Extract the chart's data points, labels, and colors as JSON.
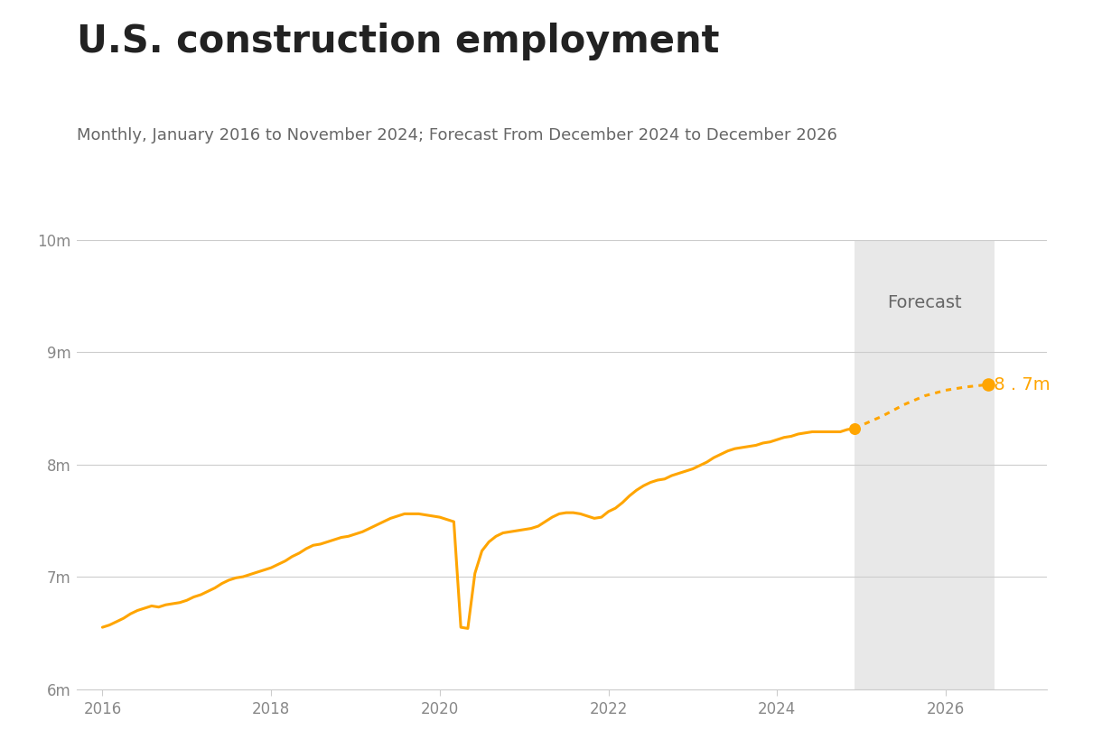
{
  "title": "U.S. construction employment",
  "subtitle": "Monthly, January 2016 to November 2024; Forecast From December 2024 to December 2026",
  "title_fontsize": 30,
  "subtitle_fontsize": 13,
  "line_color": "#FFA500",
  "forecast_dot_color": "#FFA500",
  "forecast_bg_color": "#E8E8E8",
  "forecast_label": "Forecast",
  "end_label": "8 . 7m",
  "ylim": [
    6000000,
    10000000
  ],
  "yticks": [
    6000000,
    7000000,
    8000000,
    9000000,
    10000000
  ],
  "ytick_labels": [
    "6m",
    "7m",
    "8m",
    "9m",
    "10m"
  ],
  "xticks": [
    2016,
    2018,
    2020,
    2022,
    2024,
    2026
  ],
  "xlim_start": 2015.7,
  "xlim_end": 2027.2,
  "forecast_start_year": 2024.92,
  "forecast_end_year": 2026.58,
  "historical_data": [
    [
      2016.0,
      6550000
    ],
    [
      2016.083,
      6570000
    ],
    [
      2016.167,
      6600000
    ],
    [
      2016.25,
      6630000
    ],
    [
      2016.333,
      6670000
    ],
    [
      2016.417,
      6700000
    ],
    [
      2016.5,
      6720000
    ],
    [
      2016.583,
      6740000
    ],
    [
      2016.667,
      6730000
    ],
    [
      2016.75,
      6750000
    ],
    [
      2016.833,
      6760000
    ],
    [
      2016.917,
      6770000
    ],
    [
      2017.0,
      6790000
    ],
    [
      2017.083,
      6820000
    ],
    [
      2017.167,
      6840000
    ],
    [
      2017.25,
      6870000
    ],
    [
      2017.333,
      6900000
    ],
    [
      2017.417,
      6940000
    ],
    [
      2017.5,
      6970000
    ],
    [
      2017.583,
      6990000
    ],
    [
      2017.667,
      7000000
    ],
    [
      2017.75,
      7020000
    ],
    [
      2017.833,
      7040000
    ],
    [
      2017.917,
      7060000
    ],
    [
      2018.0,
      7080000
    ],
    [
      2018.083,
      7110000
    ],
    [
      2018.167,
      7140000
    ],
    [
      2018.25,
      7180000
    ],
    [
      2018.333,
      7210000
    ],
    [
      2018.417,
      7250000
    ],
    [
      2018.5,
      7280000
    ],
    [
      2018.583,
      7290000
    ],
    [
      2018.667,
      7310000
    ],
    [
      2018.75,
      7330000
    ],
    [
      2018.833,
      7350000
    ],
    [
      2018.917,
      7360000
    ],
    [
      2019.0,
      7380000
    ],
    [
      2019.083,
      7400000
    ],
    [
      2019.167,
      7430000
    ],
    [
      2019.25,
      7460000
    ],
    [
      2019.333,
      7490000
    ],
    [
      2019.417,
      7520000
    ],
    [
      2019.5,
      7540000
    ],
    [
      2019.583,
      7560000
    ],
    [
      2019.667,
      7560000
    ],
    [
      2019.75,
      7560000
    ],
    [
      2019.833,
      7550000
    ],
    [
      2019.917,
      7540000
    ],
    [
      2020.0,
      7530000
    ],
    [
      2020.083,
      7510000
    ],
    [
      2020.167,
      7490000
    ],
    [
      2020.25,
      6550000
    ],
    [
      2020.333,
      6540000
    ],
    [
      2020.417,
      7030000
    ],
    [
      2020.5,
      7230000
    ],
    [
      2020.583,
      7310000
    ],
    [
      2020.667,
      7360000
    ],
    [
      2020.75,
      7390000
    ],
    [
      2020.833,
      7400000
    ],
    [
      2020.917,
      7410000
    ],
    [
      2021.0,
      7420000
    ],
    [
      2021.083,
      7430000
    ],
    [
      2021.167,
      7450000
    ],
    [
      2021.25,
      7490000
    ],
    [
      2021.333,
      7530000
    ],
    [
      2021.417,
      7560000
    ],
    [
      2021.5,
      7570000
    ],
    [
      2021.583,
      7570000
    ],
    [
      2021.667,
      7560000
    ],
    [
      2021.75,
      7540000
    ],
    [
      2021.833,
      7520000
    ],
    [
      2021.917,
      7530000
    ],
    [
      2022.0,
      7580000
    ],
    [
      2022.083,
      7610000
    ],
    [
      2022.167,
      7660000
    ],
    [
      2022.25,
      7720000
    ],
    [
      2022.333,
      7770000
    ],
    [
      2022.417,
      7810000
    ],
    [
      2022.5,
      7840000
    ],
    [
      2022.583,
      7860000
    ],
    [
      2022.667,
      7870000
    ],
    [
      2022.75,
      7900000
    ],
    [
      2022.833,
      7920000
    ],
    [
      2022.917,
      7940000
    ],
    [
      2023.0,
      7960000
    ],
    [
      2023.083,
      7990000
    ],
    [
      2023.167,
      8020000
    ],
    [
      2023.25,
      8060000
    ],
    [
      2023.333,
      8090000
    ],
    [
      2023.417,
      8120000
    ],
    [
      2023.5,
      8140000
    ],
    [
      2023.583,
      8150000
    ],
    [
      2023.667,
      8160000
    ],
    [
      2023.75,
      8170000
    ],
    [
      2023.833,
      8190000
    ],
    [
      2023.917,
      8200000
    ],
    [
      2024.0,
      8220000
    ],
    [
      2024.083,
      8240000
    ],
    [
      2024.167,
      8250000
    ],
    [
      2024.25,
      8270000
    ],
    [
      2024.333,
      8280000
    ],
    [
      2024.417,
      8290000
    ],
    [
      2024.5,
      8290000
    ],
    [
      2024.583,
      8290000
    ],
    [
      2024.667,
      8290000
    ],
    [
      2024.75,
      8290000
    ],
    [
      2024.833,
      8310000
    ],
    [
      2024.917,
      8320000
    ]
  ],
  "forecast_data": [
    [
      2024.917,
      8320000
    ],
    [
      2025.25,
      8430000
    ],
    [
      2025.5,
      8530000
    ],
    [
      2025.75,
      8610000
    ],
    [
      2026.0,
      8660000
    ],
    [
      2026.25,
      8690000
    ],
    [
      2026.5,
      8710000
    ]
  ]
}
